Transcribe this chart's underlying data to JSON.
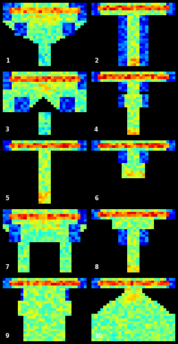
{
  "background_color": "#000000",
  "label_color": "#ffffff",
  "label_fontsize": 6,
  "grid_rows": 5,
  "grid_cols": 2,
  "panel_labels": [
    "1",
    "2",
    "3",
    "4",
    "5",
    "6",
    "7",
    "8",
    "9",
    "10"
  ],
  "colormap": "jet"
}
